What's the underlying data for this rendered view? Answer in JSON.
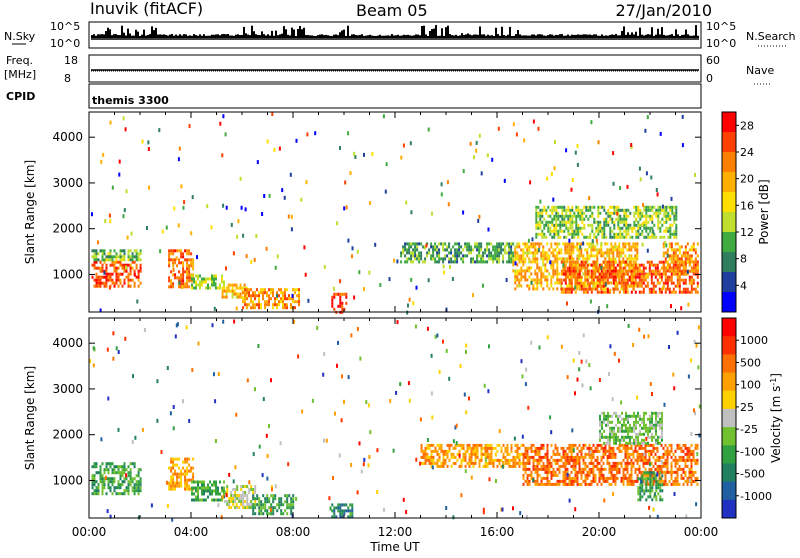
{
  "header": {
    "station": "Inuvik (fitACF)",
    "beam": "Beam 05",
    "date": "27/Jan/2010"
  },
  "param_panels": {
    "nsky_label": "N.Sky",
    "nsky_ticks": [
      "10^5",
      "10^0"
    ],
    "nsearch_label": "N.Search",
    "nsearch_ticks": [
      "10^5",
      "10^0"
    ],
    "freq_label": "Freq.",
    "freq_unit": "[MHz]",
    "freq_ticks": [
      "18",
      "8"
    ],
    "nave_label": "Nave",
    "nave_ticks": [
      "60",
      "0"
    ],
    "cpid_label": "CPID",
    "cpid_value": "themis 3300"
  },
  "colors": {
    "power_scale": [
      "#0000ff",
      "#1f3f9f",
      "#2f7f5f",
      "#3faa3f",
      "#bfdf2f",
      "#ffdf00",
      "#ffaf00",
      "#ff7f00",
      "#ff4000",
      "#ff0000"
    ],
    "velocity_scale": [
      "#2030c0",
      "#2060a0",
      "#208060",
      "#30a040",
      "#70c030",
      "#c0c0c0",
      "#ffd000",
      "#ffa000",
      "#ff7000",
      "#ff3000",
      "#ff0000"
    ]
  },
  "chart_data": [
    {
      "type": "heatmap",
      "panel": "power",
      "xlabel": "Time UT",
      "ylabel": "Slant Range [km]",
      "xlim_hours": [
        0,
        24
      ],
      "ylim": [
        180,
        4550
      ],
      "yticks": [
        "4000",
        "3000",
        "2000",
        "1000"
      ],
      "colorbar_label": "Power [dB]",
      "colorbar_ticks": [
        "28",
        "24",
        "20",
        "16",
        "12",
        "8",
        "4"
      ],
      "colorbar_range": [
        0,
        30
      ],
      "regions": [
        {
          "t": [
            0.1,
            2.0
          ],
          "r": [
            750,
            1300
          ],
          "v": 26
        },
        {
          "t": [
            0.1,
            2.0
          ],
          "r": [
            1300,
            1550
          ],
          "v": 11
        },
        {
          "t": [
            3.1,
            4.1
          ],
          "r": [
            700,
            1550
          ],
          "v": 24
        },
        {
          "t": [
            4.0,
            5.3
          ],
          "r": [
            700,
            1000
          ],
          "v": 13
        },
        {
          "t": [
            5.2,
            6.2
          ],
          "r": [
            500,
            800
          ],
          "v": 19
        },
        {
          "t": [
            6.0,
            8.2
          ],
          "r": [
            250,
            700
          ],
          "v": 22
        },
        {
          "t": [
            9.5,
            10.1
          ],
          "r": [
            200,
            600
          ],
          "v": 27
        },
        {
          "t": [
            12.2,
            16.6
          ],
          "r": [
            1250,
            1700
          ],
          "v": 9
        },
        {
          "t": [
            16.6,
            21.5
          ],
          "r": [
            700,
            1700
          ],
          "v": 19
        },
        {
          "t": [
            18.5,
            23.9
          ],
          "r": [
            600,
            1300
          ],
          "v": 25
        },
        {
          "t": [
            22.5,
            23.9
          ],
          "r": [
            1000,
            1700
          ],
          "v": 22
        },
        {
          "t": [
            17.5,
            23.0
          ],
          "r": [
            1800,
            2500
          ],
          "v": 12
        }
      ]
    },
    {
      "type": "heatmap",
      "panel": "velocity",
      "xlabel": "Time UT",
      "ylabel": "Slant Range [km]",
      "xlim_hours": [
        0,
        24
      ],
      "ylim": [
        180,
        4550
      ],
      "xticks": [
        "00:00",
        "04:00",
        "08:00",
        "12:00",
        "16:00",
        "20:00",
        "00:00"
      ],
      "yticks": [
        "4000",
        "3000",
        "2000",
        "1000"
      ],
      "colorbar_label": "Velocity [m s",
      "colorbar_unit_sup": "-1",
      "colorbar_label_end": "]",
      "colorbar_ticks": [
        "1000",
        "500",
        "100",
        "25",
        "-25",
        "-100",
        "-500",
        "-1000"
      ],
      "regions": [
        {
          "t": [
            0.1,
            2.0
          ],
          "r": [
            700,
            1400
          ],
          "v": 3
        },
        {
          "t": [
            3.1,
            4.1
          ],
          "r": [
            800,
            1500
          ],
          "v": 7
        },
        {
          "t": [
            4.0,
            5.3
          ],
          "r": [
            600,
            1000
          ],
          "v": 3
        },
        {
          "t": [
            5.3,
            6.5
          ],
          "r": [
            400,
            900
          ],
          "v": 5
        },
        {
          "t": [
            6.4,
            8.0
          ],
          "r": [
            250,
            700
          ],
          "v": 3
        },
        {
          "t": [
            9.5,
            10.3
          ],
          "r": [
            200,
            500
          ],
          "v": 2
        },
        {
          "t": [
            13.0,
            17.0
          ],
          "r": [
            1300,
            1800
          ],
          "v": 7
        },
        {
          "t": [
            17.0,
            23.9
          ],
          "r": [
            900,
            1800
          ],
          "v": 8
        },
        {
          "t": [
            21.5,
            22.5
          ],
          "r": [
            600,
            1200
          ],
          "v": 3
        },
        {
          "t": [
            20.0,
            22.5
          ],
          "r": [
            1800,
            2500
          ],
          "v": 4
        }
      ]
    }
  ]
}
